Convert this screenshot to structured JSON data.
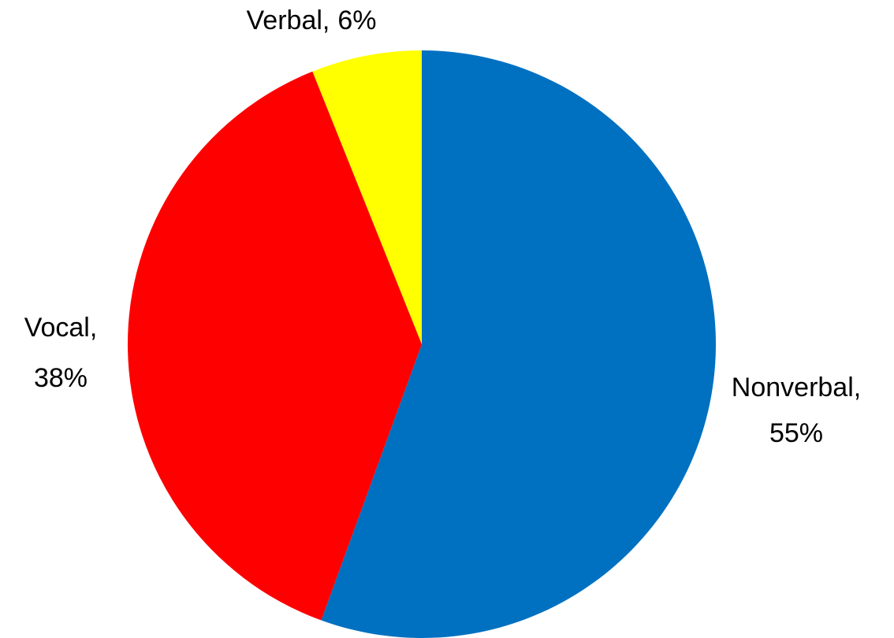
{
  "chart_data": {
    "type": "pie",
    "categories": [
      "Nonverbal,",
      "Vocal,",
      "Verbal,"
    ],
    "values": [
      55,
      38,
      6
    ],
    "value_labels": [
      "55%",
      "38%",
      "6%"
    ],
    "colors": [
      "#0070C0",
      "#FF0000",
      "#FFFF00"
    ],
    "start_angle": 0,
    "direction": "clockwise"
  }
}
